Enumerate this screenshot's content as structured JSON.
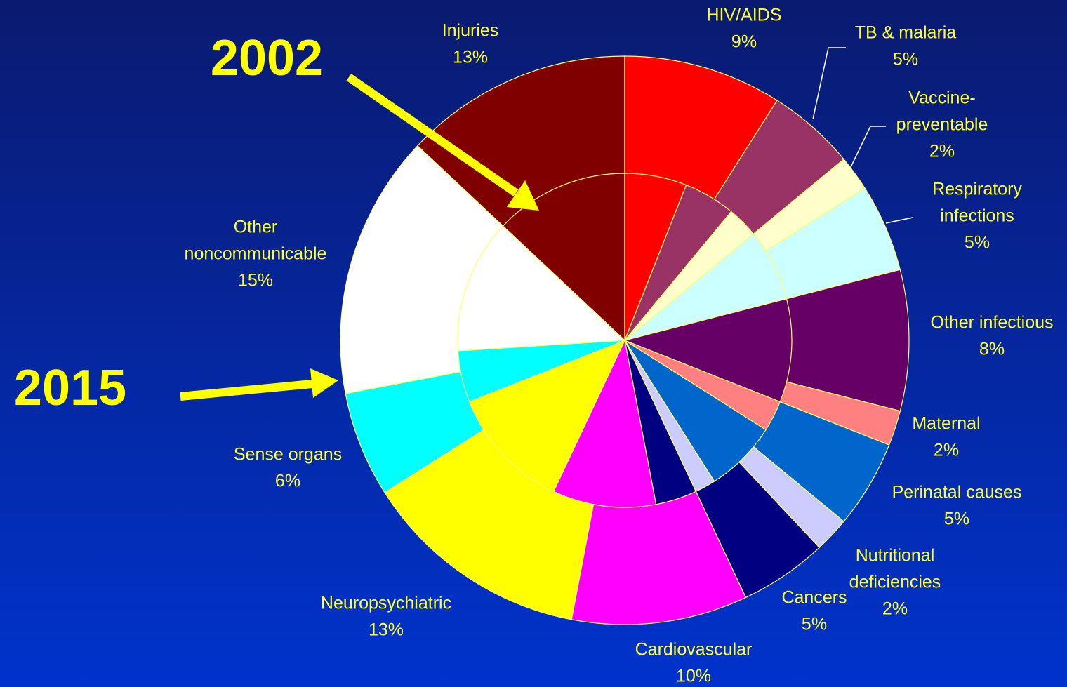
{
  "chart_data": {
    "type": "nested-pie",
    "categories": [
      [
        "Injuries"
      ],
      [
        "HIV/AIDS"
      ],
      [
        "TB & malaria"
      ],
      [
        "Vaccine-",
        "preventable"
      ],
      [
        "Respiratory",
        "infections"
      ],
      [
        "Other infectious"
      ],
      [
        "Maternal"
      ],
      [
        "Perinatal causes"
      ],
      [
        "Nutritional",
        "deficiencies"
      ],
      [
        "Cancers"
      ],
      [
        "Cardiovascular"
      ],
      [
        "Neuropsychiatric"
      ],
      [
        "Sense organs"
      ],
      [
        "Other",
        "noncommunicable"
      ]
    ],
    "colors": [
      "#800000",
      "#ff0000",
      "#993366",
      "#ffffcc",
      "#ccffff",
      "#660066",
      "#ff8080",
      "#0066cc",
      "#ccccff",
      "#000080",
      "#ff00ff",
      "#ffff00",
      "#00ffff",
      "#ffffff"
    ],
    "series": [
      {
        "name": "2002",
        "values": [
          13,
          6,
          5,
          3,
          7,
          10,
          3,
          7,
          2,
          4,
          10,
          12,
          5,
          13
        ]
      },
      {
        "name": "2015",
        "values": [
          13,
          9,
          5,
          2,
          5,
          8,
          2,
          5,
          2,
          5,
          10,
          13,
          6,
          15
        ],
        "value_labels": [
          "13%",
          "9%",
          "5%",
          "2%",
          "5%",
          "8%",
          "2%",
          "5%",
          "2%",
          "5%",
          "10%",
          "13%",
          "6%",
          "15%"
        ]
      }
    ]
  }
}
